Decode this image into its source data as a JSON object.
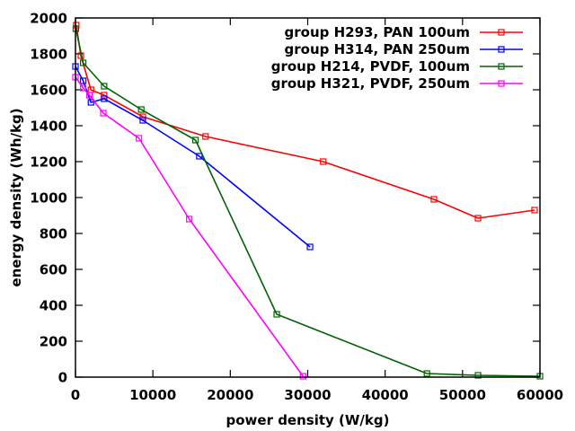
{
  "chart_data": {
    "type": "line",
    "title": "",
    "xlabel": "power density (W/kg)",
    "ylabel": "energy density (Wh/kg)",
    "xlim": [
      0,
      60000
    ],
    "ylim": [
      0,
      2000
    ],
    "xticks": [
      0,
      10000,
      20000,
      30000,
      40000,
      50000,
      60000
    ],
    "yticks": [
      0,
      200,
      400,
      600,
      800,
      1000,
      1200,
      1400,
      1600,
      1800,
      2000
    ],
    "grid": false,
    "legend_position": "top-right",
    "marker": "open-square",
    "series": [
      {
        "name": "group H293, PAN 100um",
        "color": "#ff0000",
        "x": [
          100,
          700,
          2000,
          3700,
          8700,
          16800,
          32000,
          46300,
          52000,
          59300
        ],
        "y": [
          1960,
          1790,
          1600,
          1570,
          1450,
          1340,
          1200,
          990,
          885,
          930
        ]
      },
      {
        "name": "group H314, PAN 250um",
        "color": "#0000ff",
        "x": [
          0,
          1000,
          2000,
          3700,
          8700,
          16000,
          30300
        ],
        "y": [
          1730,
          1650,
          1530,
          1550,
          1430,
          1230,
          725
        ]
      },
      {
        "name": "group H214, PVDF, 100um",
        "color": "#006400",
        "x": [
          50,
          1000,
          3700,
          8500,
          15500,
          26000,
          45400,
          52000,
          60000
        ],
        "y": [
          1940,
          1750,
          1620,
          1490,
          1320,
          350,
          20,
          10,
          5
        ]
      },
      {
        "name": "group H321, PVDF, 250um",
        "color": "#ff00ff",
        "x": [
          0,
          1000,
          1800,
          3600,
          8200,
          14700,
          29400
        ],
        "y": [
          1670,
          1610,
          1570,
          1470,
          1330,
          880,
          5
        ]
      }
    ]
  }
}
